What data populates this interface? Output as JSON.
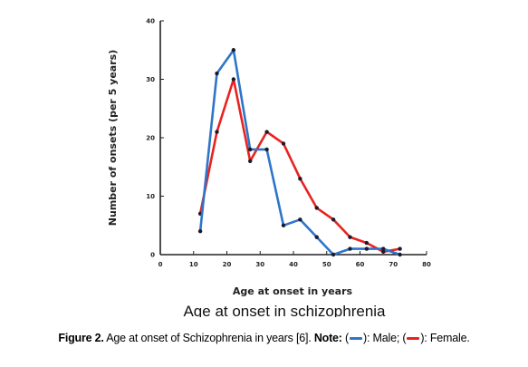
{
  "chart_data": {
    "type": "line",
    "title": "Age at onset in schizophrenia",
    "xlabel": "Age at onset in years",
    "ylabel": "Number of onsets (per 5 years)",
    "xlim": [
      0,
      80
    ],
    "ylim": [
      0,
      40
    ],
    "xticks": [
      "0",
      "10",
      "20",
      "30",
      "40",
      "50",
      "60",
      "70",
      "80"
    ],
    "yticks": [
      "0",
      "10",
      "20",
      "30",
      "40"
    ],
    "grid": false,
    "series": [
      {
        "name": "Male",
        "color": "#2e75c9",
        "x": [
          12,
          17,
          22,
          27,
          32,
          37,
          42,
          47,
          52,
          57,
          62,
          67,
          72
        ],
        "values": [
          4,
          31,
          35,
          18,
          18,
          5,
          6,
          3,
          0,
          1,
          1,
          1,
          0
        ]
      },
      {
        "name": "Female",
        "color": "#e8231f",
        "x": [
          12,
          17,
          22,
          27,
          32,
          37,
          42,
          47,
          52,
          57,
          62,
          67,
          72
        ],
        "values": [
          7,
          21,
          30,
          16,
          21,
          19,
          13,
          8,
          6,
          3,
          2,
          0.5,
          1
        ]
      }
    ]
  },
  "caption": {
    "fig_label": "Figure 2.",
    "text": " Age at onset of Schizophrenia in years [6]. ",
    "note_label": "Note:",
    "open1": " (",
    "male_text": "): Male; (",
    "female_text": "): Female."
  }
}
